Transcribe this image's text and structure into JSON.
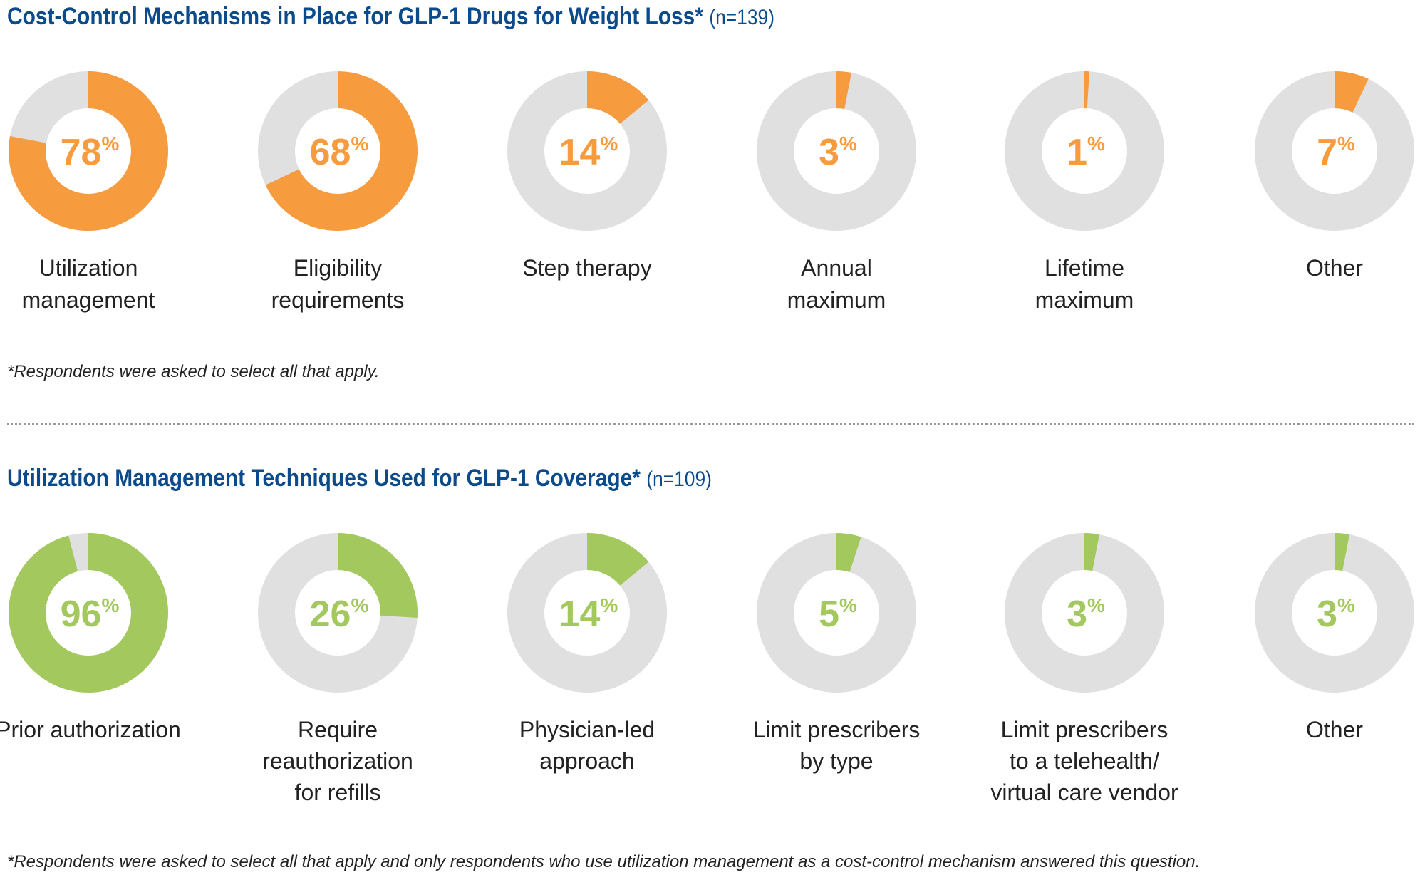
{
  "colors": {
    "title": "#0b4a8b",
    "orange": "#f79b3f",
    "green": "#a3c95e",
    "track": "#e0e0e0",
    "text": "#222222",
    "divider": "#9a9a9a"
  },
  "section1": {
    "title": "Cost-Control Mechanisms in Place for GLP-1 Drugs for Weight Loss*",
    "n": "(n=139)",
    "footnote": "*Respondents were asked to select all that apply."
  },
  "section2": {
    "title": "Utilization Management Techniques Used for GLP-1 Coverage*",
    "n": "(n=109)",
    "footnote": "*Respondents were asked to select all that apply and only respondents who use utilization management as a cost-control mechanism answered this question."
  },
  "chart_data": [
    {
      "type": "pie",
      "title": "Cost-Control Mechanisms in Place for GLP-1 Drugs for Weight Loss* (n=139)",
      "unit": "%",
      "color": "orange",
      "categories": [
        "Utilization\nmanagement",
        "Eligibility\nrequirements",
        "Step therapy",
        "Annual\nmaximum",
        "Lifetime\nmaximum",
        "Other"
      ],
      "values": [
        78,
        68,
        14,
        3,
        1,
        7
      ]
    },
    {
      "type": "pie",
      "title": "Utilization Management Techniques Used for GLP-1 Coverage* (n=109)",
      "unit": "%",
      "color": "green",
      "categories": [
        "Prior authorization",
        "Require\nreauthorization\nfor refills",
        "Physician-led\napproach",
        "Limit prescribers\nby type",
        "Limit prescribers\nto a telehealth/\nvirtual care vendor",
        "Other"
      ],
      "values": [
        96,
        26,
        14,
        5,
        3,
        3
      ]
    }
  ]
}
